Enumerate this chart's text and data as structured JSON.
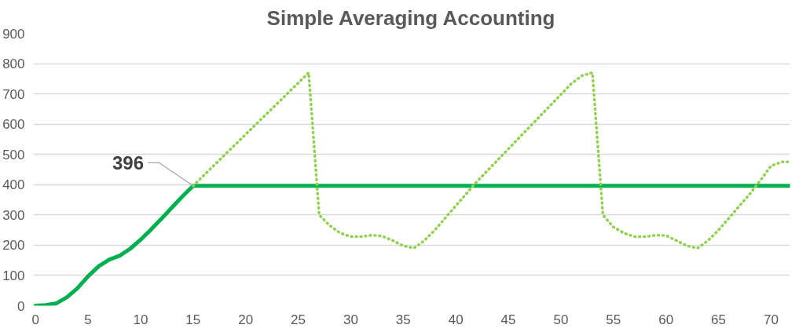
{
  "chart_data": {
    "type": "line",
    "title": "Simple Averaging Accounting",
    "xlim": [
      -0.2,
      71.8
    ],
    "xticks": [
      0,
      5,
      10,
      15,
      20,
      25,
      30,
      35,
      40,
      45,
      50,
      55,
      60,
      65,
      70
    ],
    "ylim": [
      0,
      900
    ],
    "yticks": [
      0,
      100,
      200,
      300,
      400,
      500,
      600,
      700,
      800,
      900
    ],
    "grid": "y",
    "marker": "none",
    "series": [
      {
        "color": "#00b050",
        "line_style": "solid",
        "x": [
          0,
          1,
          2,
          3,
          4,
          5,
          6,
          7,
          8,
          9,
          10,
          11,
          12,
          13,
          14,
          15,
          71.8
        ],
        "values": [
          0,
          2,
          8,
          28,
          58,
          97,
          130,
          152,
          165,
          188,
          218,
          252,
          288,
          325,
          362,
          396,
          396
        ]
      },
      {
        "color": "#92d050",
        "line_style": "dotted",
        "x": [
          15,
          16,
          17,
          18,
          19,
          20,
          21,
          22,
          23,
          24,
          25,
          26,
          27,
          28,
          29,
          30,
          31,
          32,
          33,
          34,
          35,
          36,
          37,
          38,
          39,
          40,
          41,
          42,
          43,
          44,
          45,
          46,
          47,
          48,
          49,
          50,
          51,
          52,
          53,
          54,
          55,
          56,
          57,
          58,
          59,
          60,
          61,
          62,
          63,
          64,
          65,
          66,
          67,
          68,
          69,
          70,
          71,
          71.8
        ],
        "values": [
          396,
          430,
          464,
          498,
          532,
          566,
          600,
          634,
          668,
          702,
          736,
          770,
          300,
          265,
          240,
          228,
          228,
          233,
          230,
          215,
          198,
          190,
          215,
          250,
          290,
          330,
          370,
          410,
          446,
          482,
          518,
          554,
          590,
          626,
          662,
          698,
          734,
          760,
          770,
          300,
          260,
          240,
          228,
          228,
          233,
          232,
          215,
          198,
          190,
          215,
          250,
          290,
          330,
          370,
          415,
          462,
          475,
          475
        ]
      }
    ],
    "annotations": [
      {
        "text": "396",
        "x": 15,
        "y": 396
      }
    ]
  }
}
